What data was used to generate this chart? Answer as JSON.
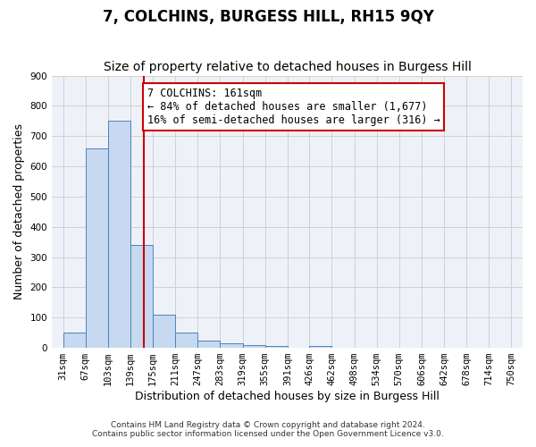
{
  "title": "7, COLCHINS, BURGESS HILL, RH15 9QY",
  "subtitle": "Size of property relative to detached houses in Burgess Hill",
  "xlabel": "Distribution of detached houses by size in Burgess Hill",
  "ylabel": "Number of detached properties",
  "footnote1": "Contains HM Land Registry data © Crown copyright and database right 2024.",
  "footnote2": "Contains public sector information licensed under the Open Government Licence v3.0.",
  "bin_edges": [
    31,
    67,
    103,
    139,
    175,
    211,
    247,
    283,
    319,
    355,
    391,
    426,
    462,
    498,
    534,
    570,
    606,
    642,
    678,
    714,
    750
  ],
  "bin_labels": [
    "31sqm",
    "67sqm",
    "103sqm",
    "139sqm",
    "175sqm",
    "211sqm",
    "247sqm",
    "283sqm",
    "319sqm",
    "355sqm",
    "391sqm",
    "426sqm",
    "462sqm",
    "498sqm",
    "534sqm",
    "570sqm",
    "606sqm",
    "642sqm",
    "678sqm",
    "714sqm",
    "750sqm"
  ],
  "bar_heights": [
    50,
    660,
    750,
    340,
    110,
    50,
    25,
    15,
    10,
    5,
    0,
    5,
    0,
    0,
    0,
    0,
    0,
    0,
    0,
    0
  ],
  "bar_color": "#c6d9f1",
  "bar_edge_color": "#4f81bd",
  "reference_line_x": 161,
  "reference_line_color": "#cc0000",
  "annotation_text": "7 COLCHINS: 161sqm\n← 84% of detached houses are smaller (1,677)\n16% of semi-detached houses are larger (316) →",
  "annotation_box_color": "#ffffff",
  "annotation_box_edge_color": "#cc0000",
  "ylim": [
    0,
    900
  ],
  "yticks": [
    0,
    100,
    200,
    300,
    400,
    500,
    600,
    700,
    800,
    900
  ],
  "grid_color": "#d0d0d0",
  "bg_color": "#ffffff",
  "plot_bg_color": "#eef2f8",
  "title_fontsize": 12,
  "subtitle_fontsize": 10,
  "axis_label_fontsize": 9,
  "tick_fontsize": 7.5,
  "annotation_fontsize": 8.5
}
